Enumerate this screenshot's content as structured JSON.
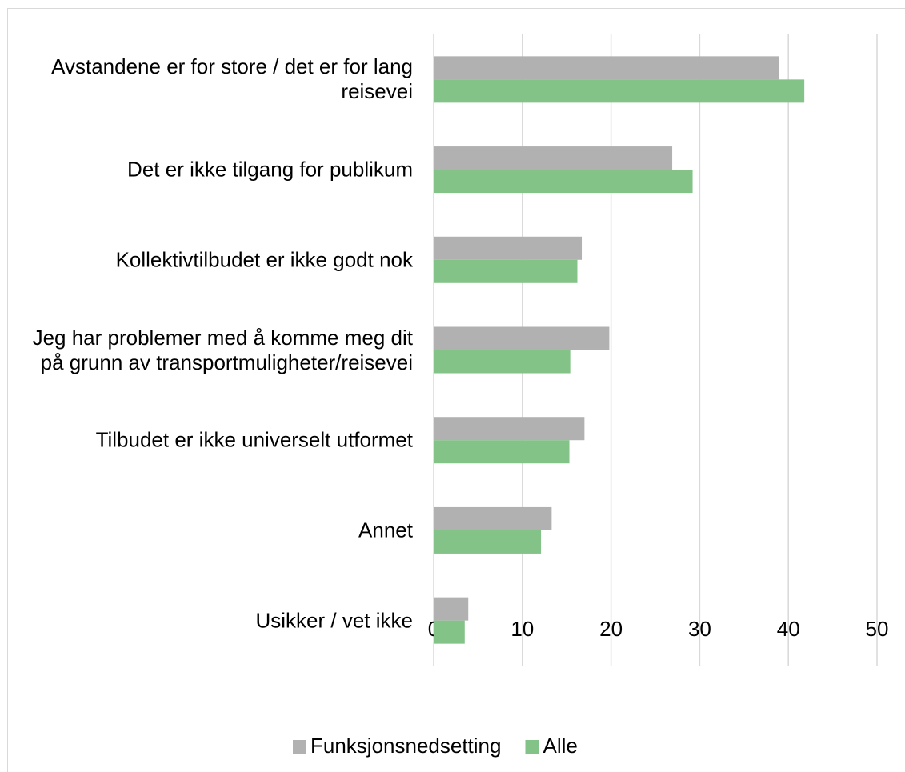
{
  "chart_data": {
    "type": "hbar",
    "categories": [
      "Avstandene er for store / det er for lang reisevei",
      "Det er ikke tilgang for publikum",
      "Kollektivtilbudet er ikke godt nok",
      "Jeg har problemer med å komme meg dit på grunn av transportmuligheter/reisevei",
      "Tilbudet er ikke universelt utformet",
      "Annet",
      "Usikker / vet ikke"
    ],
    "series": [
      {
        "name": "Funksjonsnedsetting",
        "color": "#b1b1b1",
        "values": [
          38.9,
          26.9,
          16.7,
          19.8,
          17.0,
          13.3,
          3.9
        ]
      },
      {
        "name": "Alle",
        "color": "#84c388",
        "values": [
          41.8,
          29.2,
          16.2,
          15.4,
          15.3,
          12.1,
          3.5
        ]
      }
    ],
    "xlim": [
      0,
      50
    ],
    "xticks": [
      0,
      10,
      20,
      30,
      40,
      50
    ],
    "grid": true,
    "legend": "bottom"
  }
}
